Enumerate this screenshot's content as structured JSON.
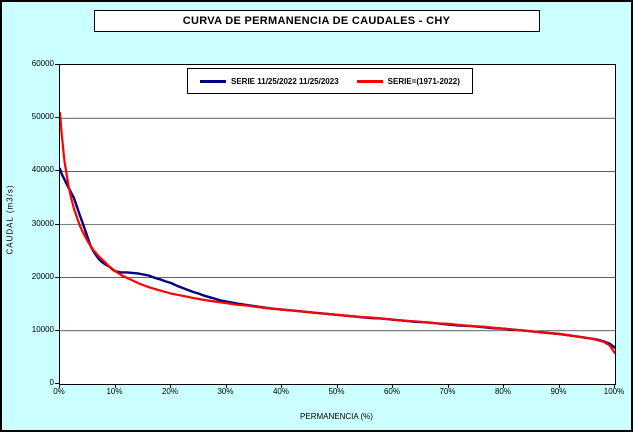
{
  "title": "CURVA DE PERMANENCIA DE CAUDALES - CHY",
  "legend": {
    "items": [
      {
        "label": "SERIE 11/25/2022 11/25/2023",
        "color": "#000080"
      },
      {
        "label": "SERIE=(1971-2022)",
        "color": "#FF0000"
      }
    ]
  },
  "chart_data": {
    "type": "line",
    "title": "CURVA DE PERMANENCIA DE CAUDALES - CHY",
    "xlabel": "PERMANENCIA (%)",
    "ylabel": "CAUDAL (m3/s)",
    "xlim": [
      0,
      100
    ],
    "ylim": [
      0,
      60000
    ],
    "x_tick_values": [
      0,
      10,
      20,
      30,
      40,
      50,
      60,
      70,
      80,
      90,
      100
    ],
    "x_tick_labels": [
      "0%",
      "10%",
      "20%",
      "30%",
      "40%",
      "50%",
      "60%",
      "70%",
      "80%",
      "90%",
      "100%"
    ],
    "y_tick_values": [
      0,
      10000,
      20000,
      30000,
      40000,
      50000,
      60000
    ],
    "y_tick_labels": [
      "0",
      "10000",
      "20000",
      "30000",
      "40000",
      "50000",
      "60000"
    ],
    "grid": "horizontal",
    "legend_position": "top-center",
    "series": [
      {
        "name": "SERIE 11/25/2022 11/25/2023",
        "color": "#000080",
        "stroke_width": 2.4,
        "points": [
          [
            0,
            40500
          ],
          [
            0.3,
            39500
          ],
          [
            0.8,
            38500
          ],
          [
            1.5,
            37000
          ],
          [
            2,
            36000
          ],
          [
            2.5,
            35000
          ],
          [
            3,
            33500
          ],
          [
            3.5,
            32000
          ],
          [
            4,
            30500
          ],
          [
            4.5,
            29000
          ],
          [
            5,
            27500
          ],
          [
            5.5,
            26000
          ],
          [
            6,
            25000
          ],
          [
            6.5,
            24200
          ],
          [
            7,
            23500
          ],
          [
            7.5,
            23000
          ],
          [
            8,
            22600
          ],
          [
            8.5,
            22300
          ],
          [
            9,
            22000
          ],
          [
            9.5,
            21500
          ],
          [
            10,
            21200
          ],
          [
            11,
            21000
          ],
          [
            12,
            21000
          ],
          [
            13,
            20900
          ],
          [
            14,
            20800
          ],
          [
            15,
            20600
          ],
          [
            16,
            20400
          ],
          [
            17,
            20000
          ],
          [
            18,
            19700
          ],
          [
            19,
            19300
          ],
          [
            20,
            19000
          ],
          [
            21,
            18500
          ],
          [
            22,
            18100
          ],
          [
            23,
            17700
          ],
          [
            24,
            17300
          ],
          [
            25,
            17000
          ],
          [
            26,
            16600
          ],
          [
            27,
            16300
          ],
          [
            28,
            16000
          ],
          [
            29,
            15700
          ],
          [
            30,
            15500
          ],
          [
            32,
            15100
          ],
          [
            34,
            14800
          ],
          [
            36,
            14500
          ],
          [
            38,
            14200
          ],
          [
            40,
            14000
          ],
          [
            42,
            13800
          ],
          [
            44,
            13600
          ],
          [
            46,
            13400
          ],
          [
            48,
            13200
          ],
          [
            50,
            13000
          ],
          [
            52,
            12800
          ],
          [
            54,
            12600
          ],
          [
            56,
            12400
          ],
          [
            58,
            12300
          ],
          [
            60,
            12100
          ],
          [
            62,
            11900
          ],
          [
            64,
            11700
          ],
          [
            66,
            11600
          ],
          [
            68,
            11400
          ],
          [
            70,
            11200
          ],
          [
            72,
            11000
          ],
          [
            74,
            10900
          ],
          [
            76,
            10700
          ],
          [
            78,
            10500
          ],
          [
            80,
            10400
          ],
          [
            82,
            10200
          ],
          [
            84,
            10000
          ],
          [
            86,
            9800
          ],
          [
            88,
            9600
          ],
          [
            90,
            9400
          ],
          [
            92,
            9100
          ],
          [
            94,
            8800
          ],
          [
            96,
            8500
          ],
          [
            97,
            8300
          ],
          [
            98,
            8000
          ],
          [
            99,
            7600
          ],
          [
            100,
            6800
          ]
        ]
      },
      {
        "name": "SERIE=(1971-2022)",
        "color": "#FF0000",
        "stroke_width": 2.2,
        "points": [
          [
            0,
            51000
          ],
          [
            0.3,
            47000
          ],
          [
            0.8,
            42000
          ],
          [
            1.5,
            37500
          ],
          [
            2,
            35000
          ],
          [
            2.5,
            33000
          ],
          [
            3,
            31500
          ],
          [
            3.5,
            30000
          ],
          [
            4,
            28800
          ],
          [
            4.5,
            27800
          ],
          [
            5,
            26800
          ],
          [
            6,
            25200
          ],
          [
            7,
            24000
          ],
          [
            8,
            23000
          ],
          [
            9,
            22000
          ],
          [
            10,
            21200
          ],
          [
            11,
            20500
          ],
          [
            12,
            20000
          ],
          [
            13,
            19500
          ],
          [
            14,
            19000
          ],
          [
            15,
            18600
          ],
          [
            16,
            18200
          ],
          [
            17,
            17900
          ],
          [
            18,
            17600
          ],
          [
            19,
            17300
          ],
          [
            20,
            17000
          ],
          [
            22,
            16600
          ],
          [
            24,
            16200
          ],
          [
            26,
            15800
          ],
          [
            28,
            15500
          ],
          [
            30,
            15200
          ],
          [
            32,
            14900
          ],
          [
            34,
            14700
          ],
          [
            36,
            14400
          ],
          [
            38,
            14200
          ],
          [
            40,
            14000
          ],
          [
            42,
            13800
          ],
          [
            44,
            13600
          ],
          [
            46,
            13400
          ],
          [
            48,
            13200
          ],
          [
            50,
            13000
          ],
          [
            52,
            12800
          ],
          [
            54,
            12600
          ],
          [
            56,
            12500
          ],
          [
            58,
            12300
          ],
          [
            60,
            12100
          ],
          [
            62,
            11900
          ],
          [
            64,
            11800
          ],
          [
            66,
            11600
          ],
          [
            68,
            11400
          ],
          [
            70,
            11300
          ],
          [
            72,
            11100
          ],
          [
            74,
            10900
          ],
          [
            76,
            10800
          ],
          [
            78,
            10600
          ],
          [
            80,
            10400
          ],
          [
            82,
            10200
          ],
          [
            84,
            10000
          ],
          [
            86,
            9800
          ],
          [
            88,
            9600
          ],
          [
            90,
            9400
          ],
          [
            92,
            9100
          ],
          [
            94,
            8800
          ],
          [
            96,
            8500
          ],
          [
            98,
            7900
          ],
          [
            99,
            7300
          ],
          [
            100,
            5800
          ]
        ]
      }
    ]
  }
}
